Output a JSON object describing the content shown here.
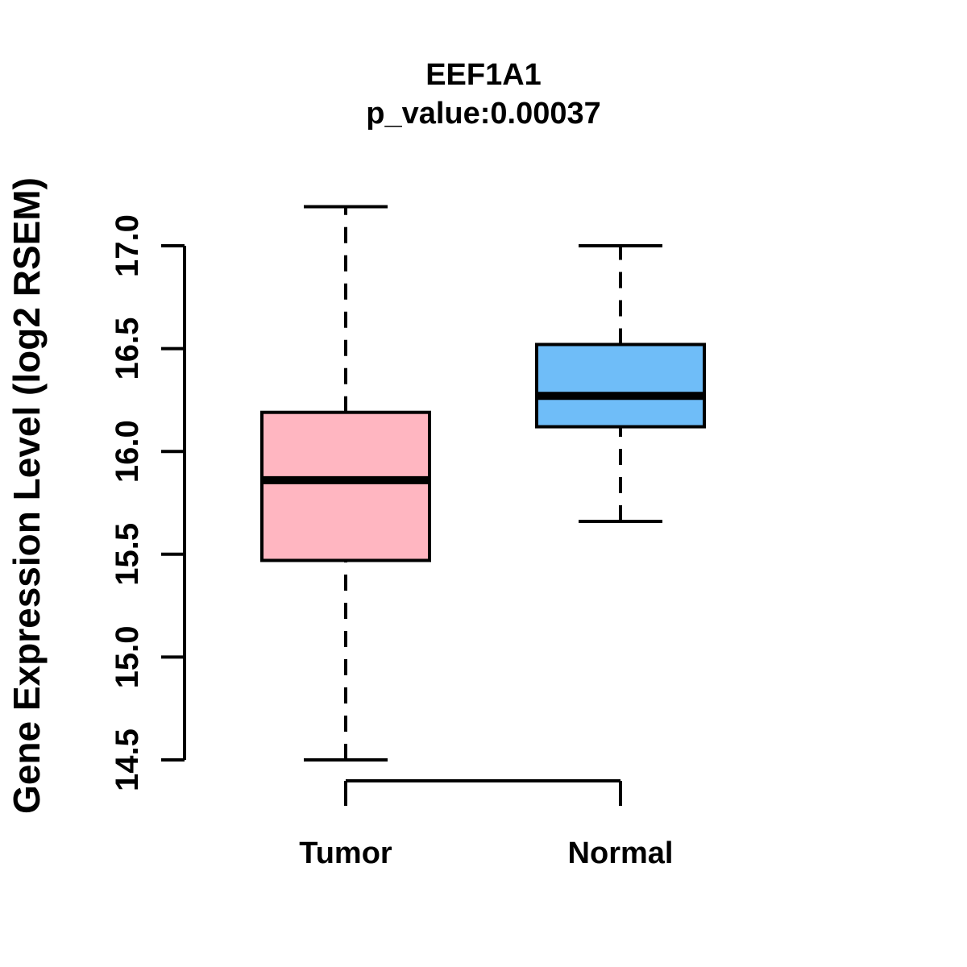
{
  "chart_data": {
    "type": "boxplot",
    "title": "EEF1A1",
    "subtitle": "p_value:0.00037",
    "ylabel": "Gene Expression Level (log2 RSEM)",
    "xlabel": "",
    "ylim": [
      14.5,
      17.0
    ],
    "yticks": [
      "14.5",
      "15.0",
      "15.5",
      "16.0",
      "16.5",
      "17.0"
    ],
    "categories": [
      "Tumor",
      "Normal"
    ],
    "grid": false,
    "legend": "none",
    "series": [
      {
        "name": "Tumor",
        "whisker_low": 14.5,
        "q1": 15.47,
        "median": 15.86,
        "q3": 16.19,
        "whisker_high": 17.19,
        "fill": "#FFB6C1"
      },
      {
        "name": "Normal",
        "whisker_low": 15.66,
        "q1": 16.12,
        "median": 16.27,
        "q3": 16.52,
        "whisker_high": 17.0,
        "fill": "#6FBDF8"
      }
    ],
    "colors": {
      "box_border": "#000000",
      "median_line": "#000000",
      "axis": "#000000",
      "text": "#000000",
      "background": "#FFFFFF"
    }
  }
}
